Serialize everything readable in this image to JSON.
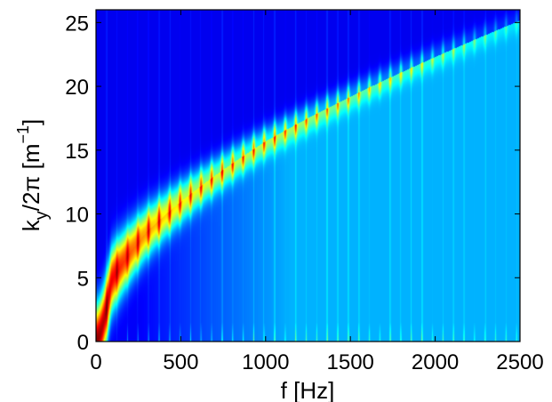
{
  "chart_data": {
    "type": "heatmap",
    "title": "",
    "xlabel": "f [Hz]",
    "ylabel": {
      "main": "k",
      "subscript": "y",
      "rest": "/2π [m",
      "superscript": "−1",
      "close": "]"
    },
    "xlim": [
      0,
      2500
    ],
    "ylim": [
      0,
      26
    ],
    "xticks": [
      0,
      500,
      1000,
      1500,
      2000,
      2500
    ],
    "yticks": [
      0,
      5,
      10,
      15,
      20,
      25
    ],
    "colormap": "jet",
    "grid": false,
    "legend": "none",
    "ridge": {
      "description_points": [
        {
          "f": 0,
          "k": 0
        },
        {
          "f": 100,
          "k": 5
        },
        {
          "f": 300,
          "k": 9
        },
        {
          "f": 500,
          "k": 11
        },
        {
          "f": 750,
          "k": 13.5
        },
        {
          "f": 1000,
          "k": 16
        },
        {
          "f": 1250,
          "k": 17.5
        },
        {
          "f": 1500,
          "k": 19
        },
        {
          "f": 1750,
          "k": 20.5
        },
        {
          "f": 2000,
          "k": 22
        },
        {
          "f": 2250,
          "k": 23.5
        },
        {
          "f": 2500,
          "k": 25
        }
      ],
      "peak_spacing_hz": 62
    }
  }
}
